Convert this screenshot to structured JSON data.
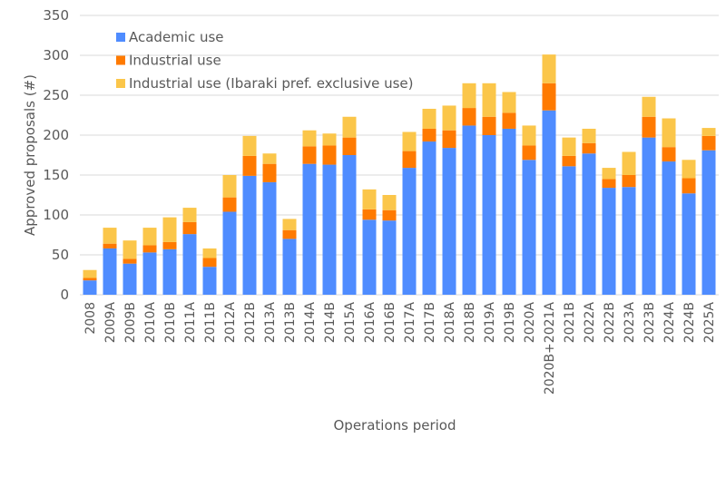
{
  "chart_data": {
    "type": "bar",
    "stacked": true,
    "title": "",
    "xlabel": "Operations period",
    "ylabel": "Approved proposals (#)",
    "ylim": [
      0,
      350
    ],
    "yticks": [
      0,
      50,
      100,
      150,
      200,
      250,
      300,
      350
    ],
    "grid": true,
    "legend_position": "top-left",
    "categories": [
      "2008",
      "2009A",
      "2009B",
      "2010A",
      "2010B",
      "2011A",
      "2011B",
      "2012A",
      "2012B",
      "2013A",
      "2013B",
      "2014A",
      "2014B",
      "2015A",
      "2016A",
      "2016B",
      "2017A",
      "2017B",
      "2018A",
      "2018B",
      "2019A",
      "2019B",
      "2020A",
      "2020B+2021A",
      "2021B",
      "2022A",
      "2022B",
      "2023A",
      "2023B",
      "2024A",
      "2024B",
      "2025A"
    ],
    "series": [
      {
        "name": "Academic use",
        "color": "#4f8cff",
        "values": [
          18,
          58,
          39,
          53,
          57,
          76,
          35,
          104,
          149,
          141,
          70,
          164,
          163,
          175,
          94,
          93,
          159,
          192,
          184,
          212,
          200,
          208,
          169,
          231,
          161,
          177,
          134,
          135,
          197,
          167,
          127,
          181
        ]
      },
      {
        "name": "Industrial use",
        "color": "#ff7a00",
        "values": [
          3,
          6,
          6,
          9,
          9,
          15,
          11,
          18,
          25,
          23,
          11,
          22,
          24,
          22,
          13,
          13,
          21,
          16,
          22,
          22,
          23,
          20,
          18,
          34,
          13,
          13,
          11,
          15,
          26,
          18,
          19,
          18
        ]
      },
      {
        "name": "Industrial use (Ibaraki pref. exclusive use)",
        "color": "#fbc64a",
        "values": [
          10,
          20,
          23,
          22,
          31,
          18,
          12,
          28,
          25,
          13,
          14,
          20,
          15,
          26,
          25,
          19,
          24,
          25,
          31,
          31,
          42,
          26,
          25,
          36,
          23,
          18,
          14,
          29,
          25,
          36,
          23,
          10
        ]
      }
    ]
  }
}
